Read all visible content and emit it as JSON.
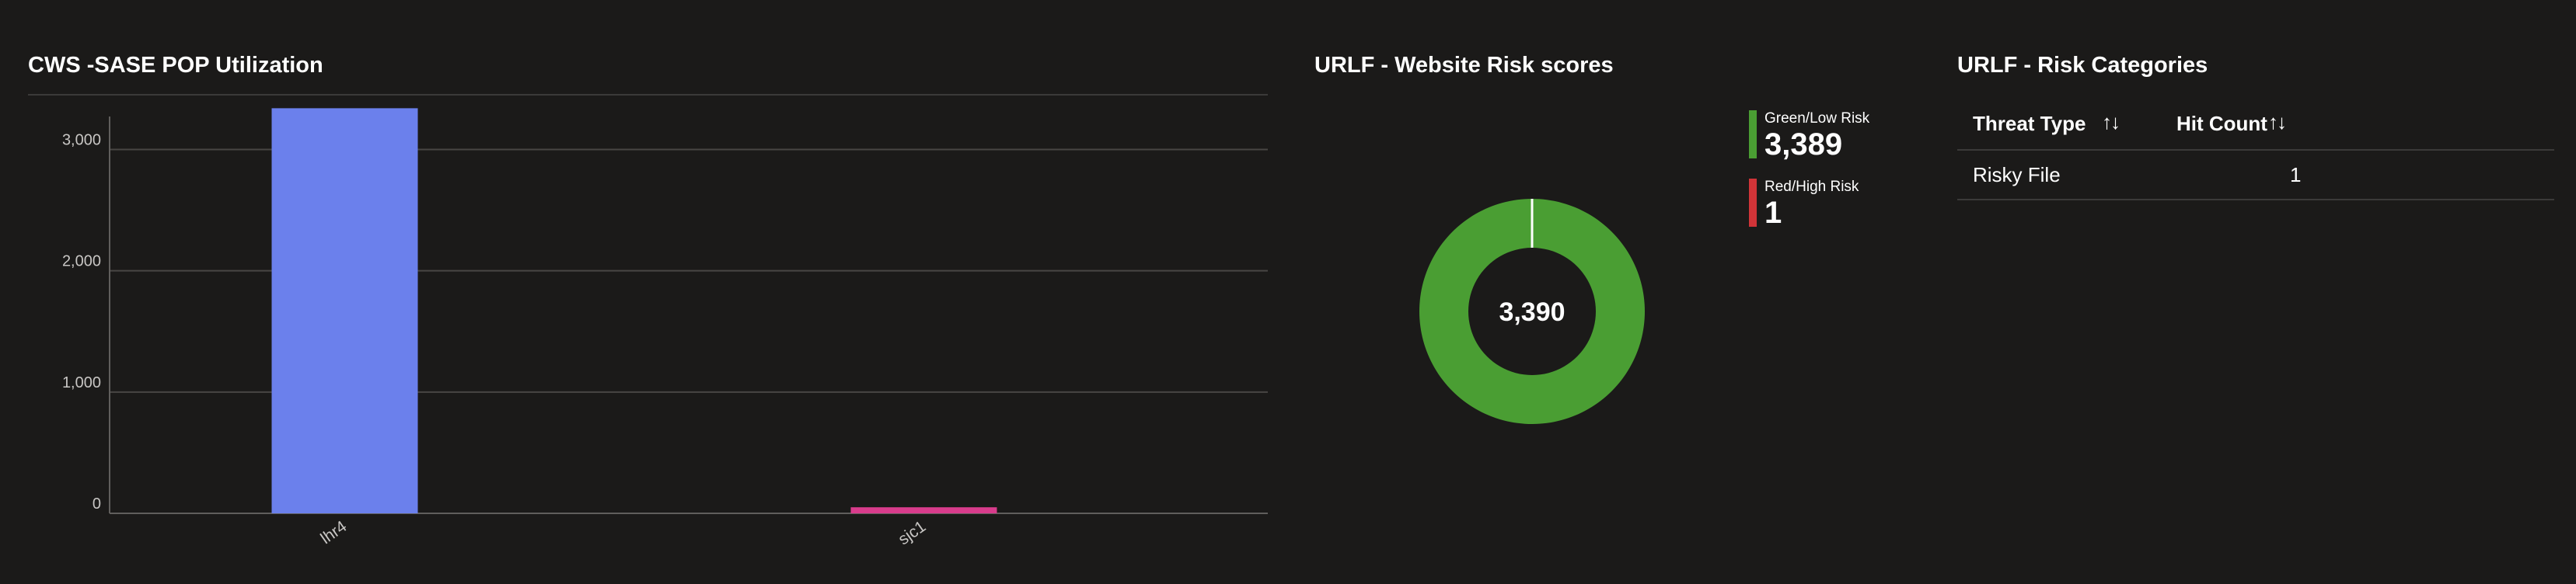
{
  "pop_utilization": {
    "title": "CWS -SASE POP Utilization",
    "chart_data": {
      "type": "bar",
      "title": "CWS -SASE POP Utilization",
      "categories": [
        "lhr4",
        "sjc1"
      ],
      "values": [
        3340,
        50
      ],
      "bar_colors": [
        "#6b80ec",
        "#d93c8c"
      ],
      "ylim": [
        0,
        3400
      ],
      "yticks": [
        0,
        1000,
        2000,
        3000
      ],
      "ytick_labels": [
        "0",
        "1,000",
        "2,000",
        "3,000"
      ],
      "grid": true
    }
  },
  "risk_scores": {
    "title": "URLF - Website Risk scores",
    "total_label": "3,390",
    "legend": [
      {
        "label": "Green/Low Risk",
        "value": "3,389",
        "color": "#4a9e33"
      },
      {
        "label": "Red/High Risk",
        "value": "1",
        "color": "#d13438"
      }
    ],
    "chart_data": {
      "type": "pie",
      "categories": [
        "Green/Low Risk",
        "Red/High Risk"
      ],
      "values": [
        3389,
        1
      ],
      "total": 3390,
      "colors": [
        "#4a9e33",
        "#d13438"
      ]
    }
  },
  "risk_categories": {
    "title": "URLF - Risk Categories",
    "columns": [
      {
        "label": "Threat Type",
        "sort_icon": "sort-arrows-icon"
      },
      {
        "label": "Hit Count",
        "sort_icon": "sort-arrows-icon"
      }
    ],
    "sort_glyph": "↑↓",
    "rows": [
      {
        "threat_type": "Risky File",
        "hit_count": "1"
      }
    ]
  }
}
